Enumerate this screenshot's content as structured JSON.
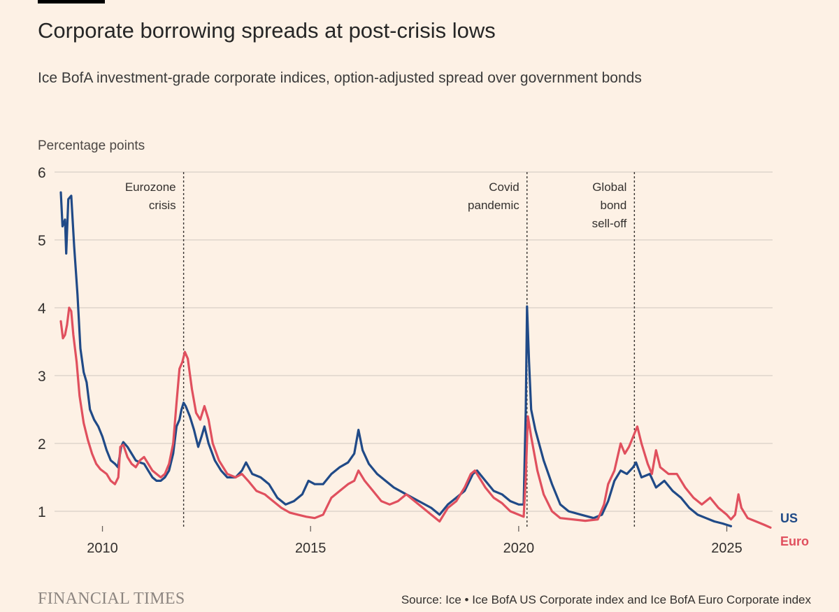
{
  "header": {
    "title": "Corporate borrowing spreads at post-crisis lows",
    "subtitle": "Ice BofA investment-grade corporate indices, option-adjusted spread over government bonds",
    "ylabel": "Percentage points"
  },
  "footer": {
    "logo": "FINANCIAL TIMES",
    "source": "Source: Ice • Ice BofA US Corporate index and Ice BofA Euro Corporate index"
  },
  "colors": {
    "us": "#204a87",
    "euro": "#e0505e",
    "grid": "#d8cfc6",
    "text": "#33302e"
  },
  "chart_data": {
    "type": "line",
    "title": "Corporate borrowing spreads at post-crisis lows",
    "ylabel": "Percentage points",
    "xlim": [
      2009.0,
      2026.1
    ],
    "ylim": [
      0.7,
      6
    ],
    "yticks": [
      1,
      2,
      3,
      4,
      5,
      6
    ],
    "xticks": [
      2010,
      2015,
      2020,
      2025
    ],
    "annotations": [
      {
        "x": 2011.95,
        "lines": [
          "Eurozone",
          "crisis"
        ]
      },
      {
        "x": 2020.2,
        "lines": [
          "Covid",
          "pandemic"
        ]
      },
      {
        "x": 2022.78,
        "lines": [
          "Global",
          "bond",
          "sell-off"
        ]
      }
    ],
    "series": [
      {
        "name": "US",
        "points": [
          [
            2009.0,
            5.7
          ],
          [
            2009.04,
            5.2
          ],
          [
            2009.1,
            5.3
          ],
          [
            2009.13,
            4.8
          ],
          [
            2009.18,
            5.6
          ],
          [
            2009.25,
            5.65
          ],
          [
            2009.32,
            4.9
          ],
          [
            2009.4,
            4.2
          ],
          [
            2009.47,
            3.4
          ],
          [
            2009.55,
            3.05
          ],
          [
            2009.62,
            2.9
          ],
          [
            2009.7,
            2.5
          ],
          [
            2009.8,
            2.35
          ],
          [
            2009.9,
            2.25
          ],
          [
            2010.0,
            2.1
          ],
          [
            2010.1,
            1.9
          ],
          [
            2010.2,
            1.75
          ],
          [
            2010.3,
            1.7
          ],
          [
            2010.37,
            1.65
          ],
          [
            2010.45,
            1.95
          ],
          [
            2010.5,
            2.02
          ],
          [
            2010.6,
            1.95
          ],
          [
            2010.7,
            1.85
          ],
          [
            2010.8,
            1.75
          ],
          [
            2010.9,
            1.72
          ],
          [
            2011.0,
            1.7
          ],
          [
            2011.1,
            1.6
          ],
          [
            2011.2,
            1.5
          ],
          [
            2011.3,
            1.45
          ],
          [
            2011.4,
            1.45
          ],
          [
            2011.5,
            1.5
          ],
          [
            2011.6,
            1.6
          ],
          [
            2011.7,
            1.85
          ],
          [
            2011.78,
            2.25
          ],
          [
            2011.85,
            2.35
          ],
          [
            2011.9,
            2.5
          ],
          [
            2011.95,
            2.6
          ],
          [
            2012.0,
            2.55
          ],
          [
            2012.1,
            2.4
          ],
          [
            2012.2,
            2.2
          ],
          [
            2012.3,
            1.95
          ],
          [
            2012.38,
            2.1
          ],
          [
            2012.45,
            2.25
          ],
          [
            2012.55,
            2.0
          ],
          [
            2012.7,
            1.75
          ],
          [
            2012.85,
            1.6
          ],
          [
            2013.0,
            1.5
          ],
          [
            2013.2,
            1.5
          ],
          [
            2013.35,
            1.6
          ],
          [
            2013.45,
            1.72
          ],
          [
            2013.6,
            1.55
          ],
          [
            2013.8,
            1.5
          ],
          [
            2014.0,
            1.4
          ],
          [
            2014.2,
            1.2
          ],
          [
            2014.4,
            1.1
          ],
          [
            2014.6,
            1.15
          ],
          [
            2014.8,
            1.25
          ],
          [
            2014.95,
            1.45
          ],
          [
            2015.1,
            1.4
          ],
          [
            2015.3,
            1.4
          ],
          [
            2015.5,
            1.55
          ],
          [
            2015.7,
            1.65
          ],
          [
            2015.9,
            1.72
          ],
          [
            2016.05,
            1.85
          ],
          [
            2016.15,
            2.2
          ],
          [
            2016.25,
            1.9
          ],
          [
            2016.4,
            1.7
          ],
          [
            2016.6,
            1.55
          ],
          [
            2016.8,
            1.45
          ],
          [
            2017.0,
            1.35
          ],
          [
            2017.3,
            1.25
          ],
          [
            2017.6,
            1.15
          ],
          [
            2017.9,
            1.05
          ],
          [
            2018.1,
            0.95
          ],
          [
            2018.3,
            1.1
          ],
          [
            2018.5,
            1.2
          ],
          [
            2018.7,
            1.3
          ],
          [
            2018.9,
            1.55
          ],
          [
            2019.0,
            1.6
          ],
          [
            2019.2,
            1.45
          ],
          [
            2019.4,
            1.3
          ],
          [
            2019.6,
            1.25
          ],
          [
            2019.8,
            1.15
          ],
          [
            2020.0,
            1.1
          ],
          [
            2020.12,
            1.1
          ],
          [
            2020.17,
            2.5
          ],
          [
            2020.2,
            4.02
          ],
          [
            2020.25,
            3.2
          ],
          [
            2020.3,
            2.5
          ],
          [
            2020.4,
            2.2
          ],
          [
            2020.6,
            1.75
          ],
          [
            2020.8,
            1.4
          ],
          [
            2021.0,
            1.1
          ],
          [
            2021.2,
            1.0
          ],
          [
            2021.5,
            0.95
          ],
          [
            2021.8,
            0.9
          ],
          [
            2022.0,
            0.95
          ],
          [
            2022.15,
            1.15
          ],
          [
            2022.3,
            1.45
          ],
          [
            2022.45,
            1.6
          ],
          [
            2022.6,
            1.55
          ],
          [
            2022.75,
            1.65
          ],
          [
            2022.82,
            1.72
          ],
          [
            2022.95,
            1.5
          ],
          [
            2023.15,
            1.55
          ],
          [
            2023.3,
            1.35
          ],
          [
            2023.5,
            1.45
          ],
          [
            2023.7,
            1.3
          ],
          [
            2023.9,
            1.2
          ],
          [
            2024.1,
            1.05
          ],
          [
            2024.3,
            0.95
          ],
          [
            2024.5,
            0.9
          ],
          [
            2024.7,
            0.85
          ],
          [
            2024.9,
            0.82
          ],
          [
            2025.0,
            0.8
          ],
          [
            2025.1,
            0.78
          ]
        ]
      },
      {
        "name": "Euro",
        "points": [
          [
            2009.0,
            3.8
          ],
          [
            2009.05,
            3.55
          ],
          [
            2009.1,
            3.6
          ],
          [
            2009.15,
            3.75
          ],
          [
            2009.2,
            4.0
          ],
          [
            2009.25,
            3.95
          ],
          [
            2009.3,
            3.6
          ],
          [
            2009.38,
            3.2
          ],
          [
            2009.45,
            2.7
          ],
          [
            2009.55,
            2.3
          ],
          [
            2009.65,
            2.05
          ],
          [
            2009.75,
            1.85
          ],
          [
            2009.85,
            1.7
          ],
          [
            2009.95,
            1.62
          ],
          [
            2010.1,
            1.55
          ],
          [
            2010.2,
            1.45
          ],
          [
            2010.3,
            1.4
          ],
          [
            2010.38,
            1.5
          ],
          [
            2010.43,
            1.95
          ],
          [
            2010.5,
            1.98
          ],
          [
            2010.6,
            1.8
          ],
          [
            2010.7,
            1.7
          ],
          [
            2010.8,
            1.65
          ],
          [
            2010.9,
            1.75
          ],
          [
            2011.0,
            1.8
          ],
          [
            2011.1,
            1.7
          ],
          [
            2011.2,
            1.6
          ],
          [
            2011.3,
            1.55
          ],
          [
            2011.4,
            1.5
          ],
          [
            2011.5,
            1.55
          ],
          [
            2011.6,
            1.7
          ],
          [
            2011.7,
            2.0
          ],
          [
            2011.78,
            2.6
          ],
          [
            2011.85,
            3.1
          ],
          [
            2011.92,
            3.2
          ],
          [
            2011.98,
            3.35
          ],
          [
            2012.05,
            3.25
          ],
          [
            2012.15,
            2.8
          ],
          [
            2012.25,
            2.45
          ],
          [
            2012.35,
            2.35
          ],
          [
            2012.45,
            2.55
          ],
          [
            2012.55,
            2.35
          ],
          [
            2012.65,
            2.0
          ],
          [
            2012.8,
            1.75
          ],
          [
            2013.0,
            1.55
          ],
          [
            2013.2,
            1.5
          ],
          [
            2013.35,
            1.55
          ],
          [
            2013.5,
            1.45
          ],
          [
            2013.7,
            1.3
          ],
          [
            2013.9,
            1.25
          ],
          [
            2014.1,
            1.15
          ],
          [
            2014.3,
            1.05
          ],
          [
            2014.5,
            0.98
          ],
          [
            2014.7,
            0.95
          ],
          [
            2014.9,
            0.92
          ],
          [
            2015.1,
            0.9
          ],
          [
            2015.3,
            0.95
          ],
          [
            2015.5,
            1.2
          ],
          [
            2015.7,
            1.3
          ],
          [
            2015.9,
            1.4
          ],
          [
            2016.05,
            1.45
          ],
          [
            2016.15,
            1.6
          ],
          [
            2016.3,
            1.45
          ],
          [
            2016.5,
            1.3
          ],
          [
            2016.7,
            1.15
          ],
          [
            2016.9,
            1.1
          ],
          [
            2017.1,
            1.15
          ],
          [
            2017.3,
            1.25
          ],
          [
            2017.5,
            1.15
          ],
          [
            2017.7,
            1.05
          ],
          [
            2017.9,
            0.95
          ],
          [
            2018.1,
            0.85
          ],
          [
            2018.3,
            1.05
          ],
          [
            2018.5,
            1.15
          ],
          [
            2018.7,
            1.35
          ],
          [
            2018.85,
            1.55
          ],
          [
            2018.95,
            1.6
          ],
          [
            2019.05,
            1.5
          ],
          [
            2019.2,
            1.35
          ],
          [
            2019.4,
            1.2
          ],
          [
            2019.6,
            1.12
          ],
          [
            2019.8,
            1.0
          ],
          [
            2020.0,
            0.95
          ],
          [
            2020.12,
            0.92
          ],
          [
            2020.17,
            1.5
          ],
          [
            2020.22,
            2.4
          ],
          [
            2020.3,
            2.1
          ],
          [
            2020.45,
            1.6
          ],
          [
            2020.6,
            1.25
          ],
          [
            2020.8,
            1.0
          ],
          [
            2021.0,
            0.9
          ],
          [
            2021.3,
            0.88
          ],
          [
            2021.6,
            0.86
          ],
          [
            2021.9,
            0.88
          ],
          [
            2022.05,
            1.1
          ],
          [
            2022.15,
            1.4
          ],
          [
            2022.3,
            1.6
          ],
          [
            2022.45,
            2.0
          ],
          [
            2022.55,
            1.85
          ],
          [
            2022.65,
            1.95
          ],
          [
            2022.75,
            2.1
          ],
          [
            2022.85,
            2.25
          ],
          [
            2022.95,
            2.0
          ],
          [
            2023.1,
            1.7
          ],
          [
            2023.2,
            1.55
          ],
          [
            2023.3,
            1.9
          ],
          [
            2023.4,
            1.65
          ],
          [
            2023.6,
            1.55
          ],
          [
            2023.8,
            1.55
          ],
          [
            2024.0,
            1.35
          ],
          [
            2024.2,
            1.2
          ],
          [
            2024.4,
            1.1
          ],
          [
            2024.6,
            1.2
          ],
          [
            2024.8,
            1.05
          ],
          [
            2025.0,
            0.95
          ],
          [
            2025.1,
            0.88
          ],
          [
            2025.2,
            0.95
          ],
          [
            2025.28,
            1.25
          ],
          [
            2025.35,
            1.05
          ],
          [
            2025.5,
            0.9
          ],
          [
            2025.7,
            0.85
          ],
          [
            2025.9,
            0.8
          ],
          [
            2026.05,
            0.76
          ]
        ]
      }
    ]
  }
}
